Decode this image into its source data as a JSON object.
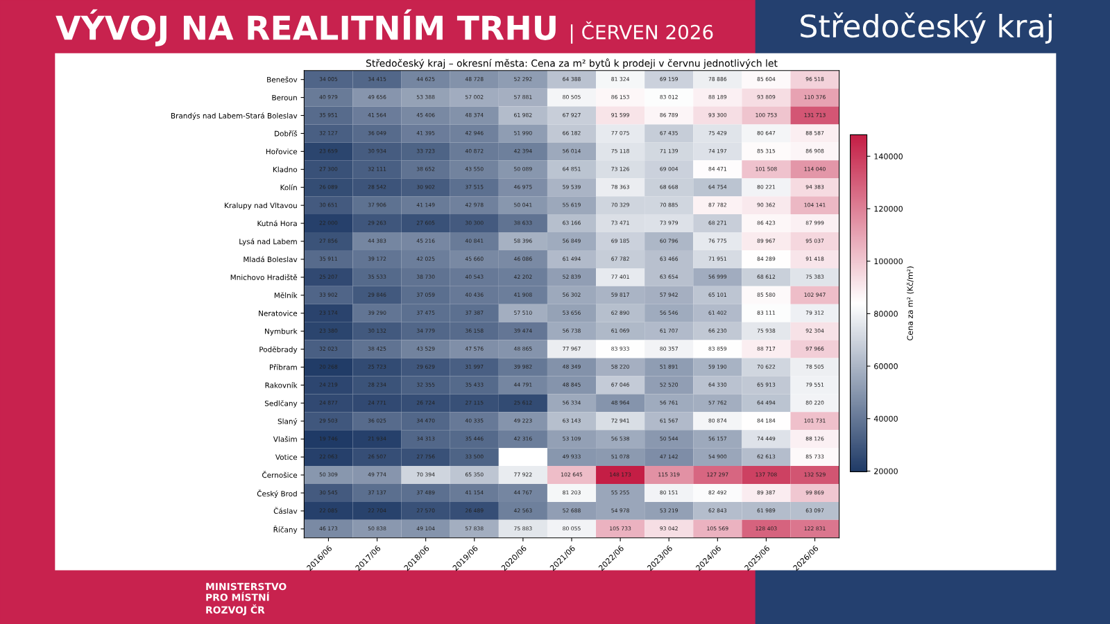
{
  "chart_data": {
    "type": "heatmap",
    "title": "Středočeský kraj – okresní města: Cena za m² bytů k prodeji v červnu jednotlivých let",
    "annotations": [
      "VÝVOJ NA REALITNÍM TRHU",
      "| ČERVEN 2026",
      "Středočeský kraj",
      "MINISTERSTVO PRO MÍSTNÍ ROZVOJ ČR"
    ],
    "clabel": "Cena za m² (Kč/m²)",
    "categories": [
      "2016/06",
      "2017/06",
      "2018/06",
      "2019/06",
      "2020/06",
      "2021/06",
      "2022/06",
      "2023/06",
      "2024/06",
      "2025/06",
      "2026/06"
    ],
    "y_categories": [
      "Benešov",
      "Beroun",
      "Brandýs nad Labem-Stará Boleslav",
      "Dobříš",
      "Hořovice",
      "Kladno",
      "Kolín",
      "Kralupy nad Vltavou",
      "Kutná Hora",
      "Lysá nad Labem",
      "Mladá Boleslav",
      "Mnichovo Hradiště",
      "Mělník",
      "Neratovice",
      "Nymburk",
      "Poděbrady",
      "Příbram",
      "Rakovník",
      "Sedlčany",
      "Slaný",
      "Vlašim",
      "Votice",
      "Černošice",
      "Český Brod",
      "Čáslav",
      "Říčany"
    ],
    "cells": [
      [
        34005,
        34415,
        44625,
        48728,
        52292,
        64388,
        81324,
        69159,
        78886,
        85604,
        96518
      ],
      [
        40979,
        49656,
        53388,
        57002,
        57881,
        80505,
        86153,
        83012,
        88189,
        93809,
        110376
      ],
      [
        35951,
        41564,
        45406,
        48374,
        61982,
        67927,
        91599,
        86789,
        93300,
        100753,
        131713
      ],
      [
        32127,
        36049,
        41395,
        42946,
        51990,
        66182,
        77075,
        67435,
        75429,
        80647,
        88587
      ],
      [
        23659,
        30934,
        33723,
        40872,
        42394,
        56014,
        75118,
        71139,
        74197,
        85315,
        86908
      ],
      [
        27300,
        32111,
        38652,
        43550,
        50089,
        64851,
        73126,
        69004,
        84471,
        101508,
        114040
      ],
      [
        26089,
        28542,
        30902,
        37515,
        46975,
        59539,
        78363,
        68668,
        64754,
        80221,
        94383
      ],
      [
        30651,
        37906,
        41149,
        42978,
        50041,
        55619,
        70329,
        70885,
        87782,
        90362,
        104141
      ],
      [
        22000,
        29263,
        27605,
        30300,
        38633,
        63166,
        73471,
        73979,
        68271,
        86423,
        87999
      ],
      [
        27856,
        44383,
        45216,
        40841,
        58396,
        56849,
        69185,
        60796,
        76775,
        89967,
        95037
      ],
      [
        35911,
        39172,
        42025,
        45660,
        46086,
        61494,
        67782,
        63466,
        71951,
        84289,
        91418
      ],
      [
        25207,
        35533,
        38730,
        40543,
        42202,
        52839,
        77401,
        63654,
        56999,
        68612,
        75383
      ],
      [
        33902,
        29846,
        37059,
        40436,
        41908,
        56302,
        59817,
        57942,
        65101,
        85580,
        102947
      ],
      [
        23174,
        39290,
        37475,
        37387,
        57510,
        53656,
        62890,
        56546,
        61402,
        83111,
        79312
      ],
      [
        23380,
        30132,
        34779,
        36158,
        39474,
        56738,
        61069,
        61707,
        66230,
        75938,
        92304
      ],
      [
        32023,
        38425,
        43529,
        47576,
        48865,
        77967,
        83933,
        80357,
        83859,
        88717,
        97966
      ],
      [
        20268,
        25723,
        29629,
        31997,
        39982,
        48349,
        58220,
        51891,
        59190,
        70622,
        78505
      ],
      [
        24219,
        28234,
        32355,
        35433,
        44791,
        48845,
        67046,
        52520,
        64330,
        65913,
        79551
      ],
      [
        24877,
        24771,
        26724,
        27115,
        25612,
        56334,
        48964,
        56761,
        57762,
        64494,
        80220
      ],
      [
        29503,
        36025,
        34470,
        40335,
        49223,
        63143,
        72941,
        61567,
        80874,
        84184,
        101731
      ],
      [
        19746,
        21934,
        34313,
        35446,
        42316,
        53109,
        56538,
        50544,
        56157,
        74449,
        88126
      ],
      [
        22063,
        26507,
        27756,
        33500,
        null,
        49933,
        51078,
        47142,
        54900,
        62613,
        85733
      ],
      [
        50309,
        49774,
        70394,
        65350,
        77922,
        102645,
        148173,
        115319,
        127297,
        137708,
        132529
      ],
      [
        30545,
        37137,
        37489,
        41154,
        44767,
        81203,
        55255,
        80151,
        82492,
        89387,
        99869
      ],
      [
        22085,
        22704,
        27570,
        26489,
        42563,
        52688,
        54978,
        53219,
        62843,
        61989,
        63097
      ],
      [
        46173,
        50838,
        49104,
        57838,
        75883,
        80055,
        105733,
        93042,
        105569,
        128403,
        122831
      ]
    ],
    "data_labels": true,
    "clim": [
      19746,
      148173
    ],
    "cticks": [
      20000,
      40000,
      60000,
      80000,
      100000,
      120000,
      140000
    ]
  }
}
